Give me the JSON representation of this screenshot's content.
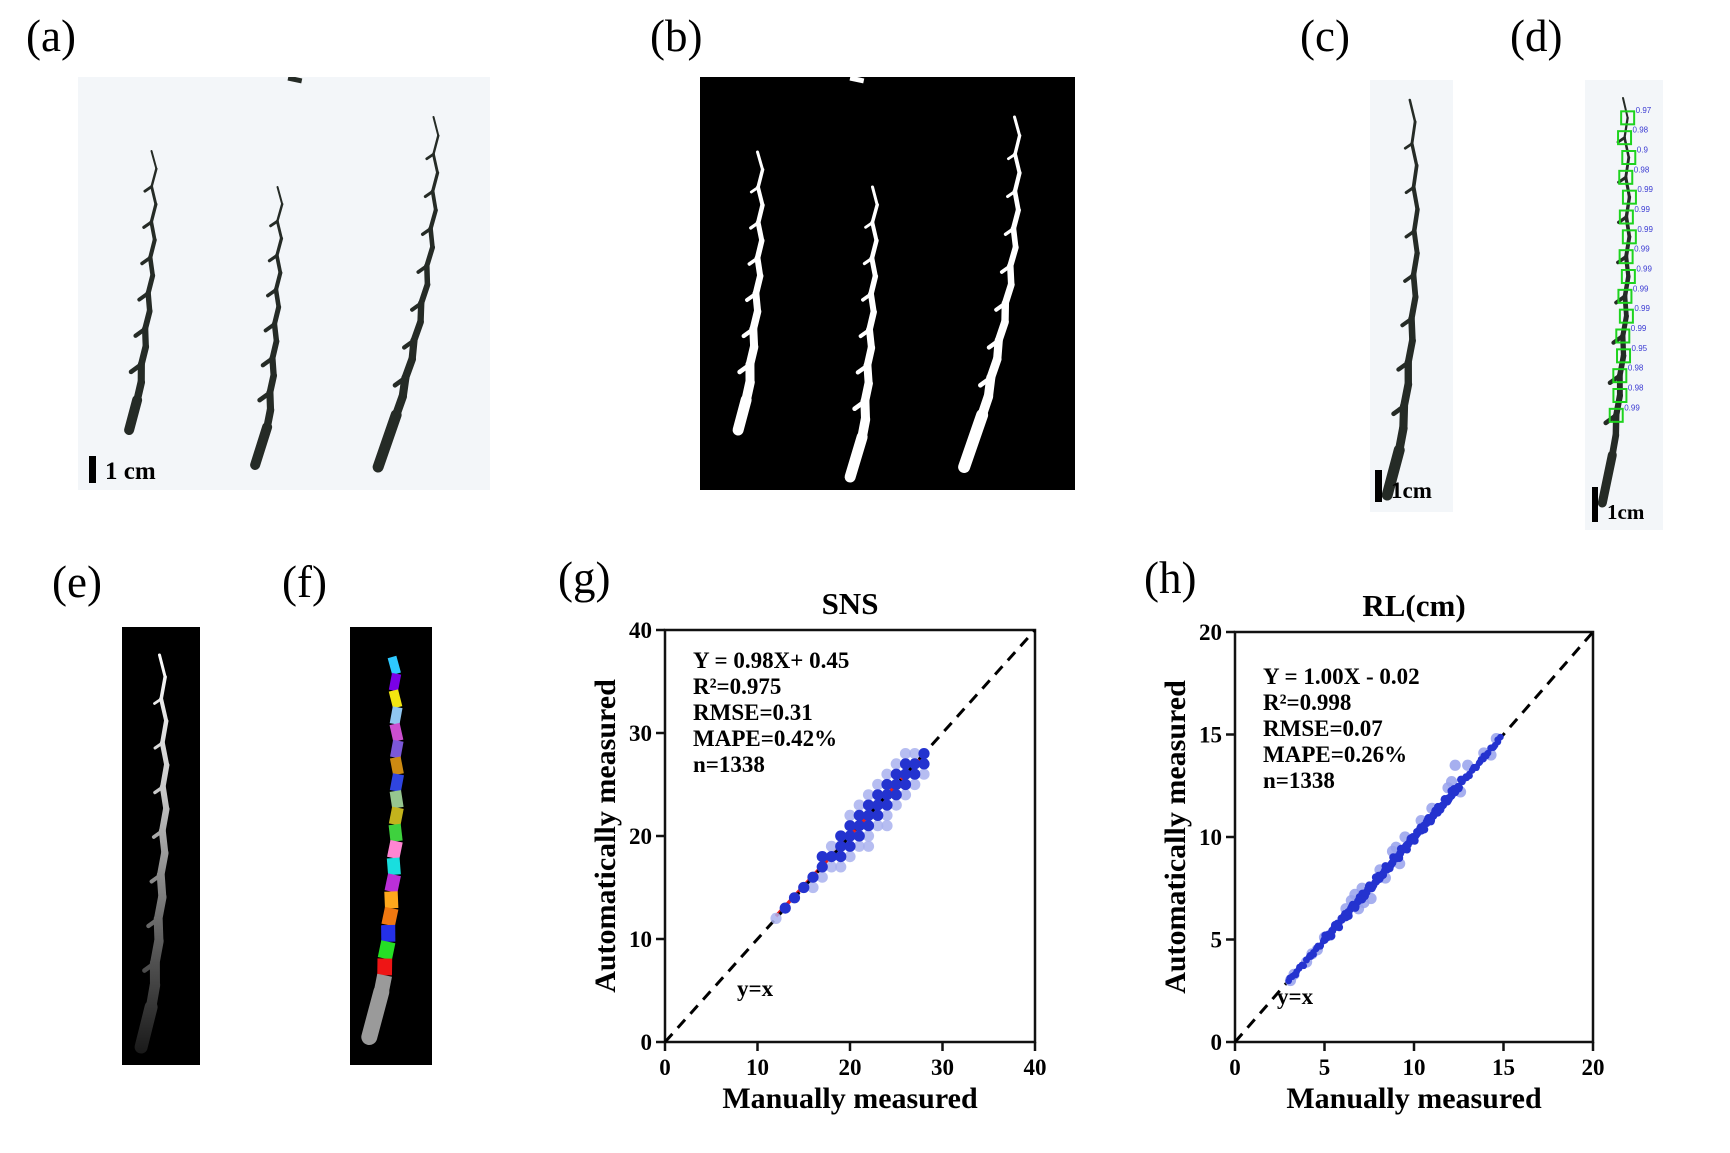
{
  "figure": {
    "panels": {
      "a": {
        "label": "(a)",
        "scale_bar_text": "1 cm",
        "content": "three rice spikes photographed on light background"
      },
      "b": {
        "label": "(b)",
        "content": "binary segmentation mask of the three spikes, white on black"
      },
      "c": {
        "label": "(c)",
        "scale_bar_text": "1cm",
        "content": "single rice spike photo"
      },
      "d": {
        "label": "(d)",
        "scale_bar_text": "1cm",
        "content": "spike with node detection boxes and confidence scores",
        "detection_scores": [
          "0.97",
          "0.98",
          "0.9",
          "0.98",
          "0.99",
          "0.99",
          "0.99",
          "0.99",
          "0.99",
          "0.99",
          "0.99",
          "0.99",
          "0.95",
          "0.98",
          "0.98",
          "0.99"
        ],
        "box_color": "#1ed31e",
        "score_color": "#3a3ad2"
      },
      "e": {
        "label": "(e)",
        "content": "grayscale-gradient coded spike mask"
      },
      "f": {
        "label": "(f)",
        "content": "instance-segmented spike, one color per internode segment",
        "segment_colors": [
          "#2ec9ff",
          "#7a00e6",
          "#f2e610",
          "#8fc6f0",
          "#cc4fd0",
          "#7b58d8",
          "#cc8a12",
          "#2f45e0",
          "#96c68f",
          "#c3b31c",
          "#3ed13e",
          "#ff85d2",
          "#19dede",
          "#bb2fd8",
          "#ffa81c",
          "#f07810",
          "#2430e8",
          "#25e025",
          "#ee1515",
          "#9a9a9a"
        ]
      },
      "g": {
        "label": "(g)"
      },
      "h": {
        "label": "(h)"
      }
    },
    "colors": {
      "photo_bg": "#f3f6f9",
      "mask_bg": "#000000",
      "spike_dark": "#252b26",
      "spike_white": "#ffffff"
    }
  },
  "chart_data": [
    {
      "id": "g",
      "type": "scatter",
      "title": "SNS",
      "xlabel": "Manually measured",
      "ylabel": "Automatically measured",
      "xlim": [
        0,
        40
      ],
      "ylim": [
        0,
        40
      ],
      "xticks": [
        "0",
        "10",
        "20",
        "30",
        "40"
      ],
      "yticks": [
        "0",
        "10",
        "20",
        "30",
        "40"
      ],
      "stats_lines": [
        "Y = 0.98X+ 0.45",
        "R²=0.975",
        "RMSE=0.31",
        "MAPE=0.42%",
        "n=1338"
      ],
      "identity_label": "y=x",
      "identity_line": {
        "x1": 0,
        "y1": 0,
        "x2": 40,
        "y2": 40,
        "color": "#000000",
        "dash": [
          11,
          8
        ]
      },
      "regression_line": {
        "slope": 0.98,
        "intercept": 0.45,
        "x1": 12,
        "x2": 28,
        "color": "#e82020"
      },
      "point_color_dark": "#2433cf",
      "point_color_light": "#a9b1ee",
      "points_dark": [
        [
          13,
          13
        ],
        [
          14,
          14
        ],
        [
          15,
          15
        ],
        [
          16,
          16
        ],
        [
          17,
          17
        ],
        [
          17,
          18
        ],
        [
          18,
          18
        ],
        [
          19,
          18
        ],
        [
          19,
          19
        ],
        [
          19,
          20
        ],
        [
          20,
          19
        ],
        [
          20,
          20
        ],
        [
          20,
          21
        ],
        [
          21,
          20
        ],
        [
          21,
          21
        ],
        [
          21,
          22
        ],
        [
          22,
          21
        ],
        [
          22,
          22
        ],
        [
          22,
          23
        ],
        [
          23,
          22
        ],
        [
          23,
          23
        ],
        [
          23,
          24
        ],
        [
          24,
          23
        ],
        [
          24,
          24
        ],
        [
          24,
          25
        ],
        [
          25,
          24
        ],
        [
          25,
          25
        ],
        [
          25,
          26
        ],
        [
          26,
          25
        ],
        [
          26,
          26
        ],
        [
          26,
          27
        ],
        [
          27,
          26
        ],
        [
          27,
          27
        ],
        [
          28,
          27
        ],
        [
          28,
          28
        ]
      ],
      "points_light": [
        [
          12,
          12
        ],
        [
          16,
          15
        ],
        [
          17,
          16
        ],
        [
          18,
          17
        ],
        [
          18,
          19
        ],
        [
          19,
          17
        ],
        [
          20,
          18
        ],
        [
          20,
          22
        ],
        [
          21,
          19
        ],
        [
          21,
          23
        ],
        [
          22,
          19
        ],
        [
          22,
          20
        ],
        [
          22,
          24
        ],
        [
          23,
          21
        ],
        [
          23,
          25
        ],
        [
          24,
          21
        ],
        [
          24,
          22
        ],
        [
          24,
          26
        ],
        [
          25,
          23
        ],
        [
          25,
          27
        ],
        [
          26,
          24
        ],
        [
          26,
          28
        ],
        [
          27,
          25
        ],
        [
          27,
          28
        ],
        [
          28,
          26
        ]
      ]
    },
    {
      "id": "h",
      "type": "scatter",
      "title": "RL(cm)",
      "xlabel": "Manually measured",
      "ylabel": "Automatically measured",
      "xlim": [
        0,
        20
      ],
      "ylim": [
        0,
        20
      ],
      "xticks": [
        "0",
        "5",
        "10",
        "15",
        "20"
      ],
      "yticks": [
        "0",
        "5",
        "10",
        "15",
        "20"
      ],
      "stats_lines": [
        "Y = 1.00X - 0.02",
        "R²=0.998",
        "RMSE=0.07",
        "MAPE=0.26%",
        "n=1338"
      ],
      "identity_label": "y=x",
      "identity_line": {
        "x1": 0,
        "y1": 0,
        "x2": 20,
        "y2": 20,
        "color": "#000000",
        "dash": [
          11,
          8
        ]
      },
      "regression_line": {
        "slope": 1.0,
        "intercept": -0.02,
        "x1": 3.0,
        "x2": 14.8,
        "color": "#e82020"
      },
      "point_color_dark": "#2433cf",
      "point_color_light": "#97a1ec",
      "dense_bands": [
        {
          "x_start": 3.0,
          "x_end": 14.8,
          "points": 150,
          "jitter": 0.07,
          "r": 3.3
        },
        {
          "x_start": 5.0,
          "x_end": 12.6,
          "points": 100,
          "jitter": 0.13,
          "r": 4.0
        }
      ],
      "points_light": [
        [
          3.1,
          3.0
        ],
        [
          3.3,
          3.3
        ],
        [
          4.0,
          3.9
        ],
        [
          4.3,
          4.3
        ],
        [
          4.6,
          4.5
        ],
        [
          5.0,
          5.1
        ],
        [
          5.3,
          5.2
        ],
        [
          6.2,
          6.5
        ],
        [
          6.5,
          6.9
        ],
        [
          6.7,
          7.2
        ],
        [
          6.9,
          6.5
        ],
        [
          7.1,
          7.5
        ],
        [
          7.2,
          6.8
        ],
        [
          7.6,
          7.0
        ],
        [
          8.1,
          8.4
        ],
        [
          8.4,
          8.0
        ],
        [
          8.8,
          9.3
        ],
        [
          9.0,
          9.5
        ],
        [
          9.2,
          8.7
        ],
        [
          9.5,
          10.0
        ],
        [
          10.4,
          10.8
        ],
        [
          11.0,
          11.4
        ],
        [
          11.9,
          12.4
        ],
        [
          12.1,
          12.7
        ],
        [
          12.3,
          13.5
        ],
        [
          12.6,
          12.2
        ],
        [
          13.0,
          13.5
        ],
        [
          13.9,
          14.1
        ],
        [
          14.3,
          14.0
        ],
        [
          14.6,
          14.8
        ]
      ]
    }
  ]
}
